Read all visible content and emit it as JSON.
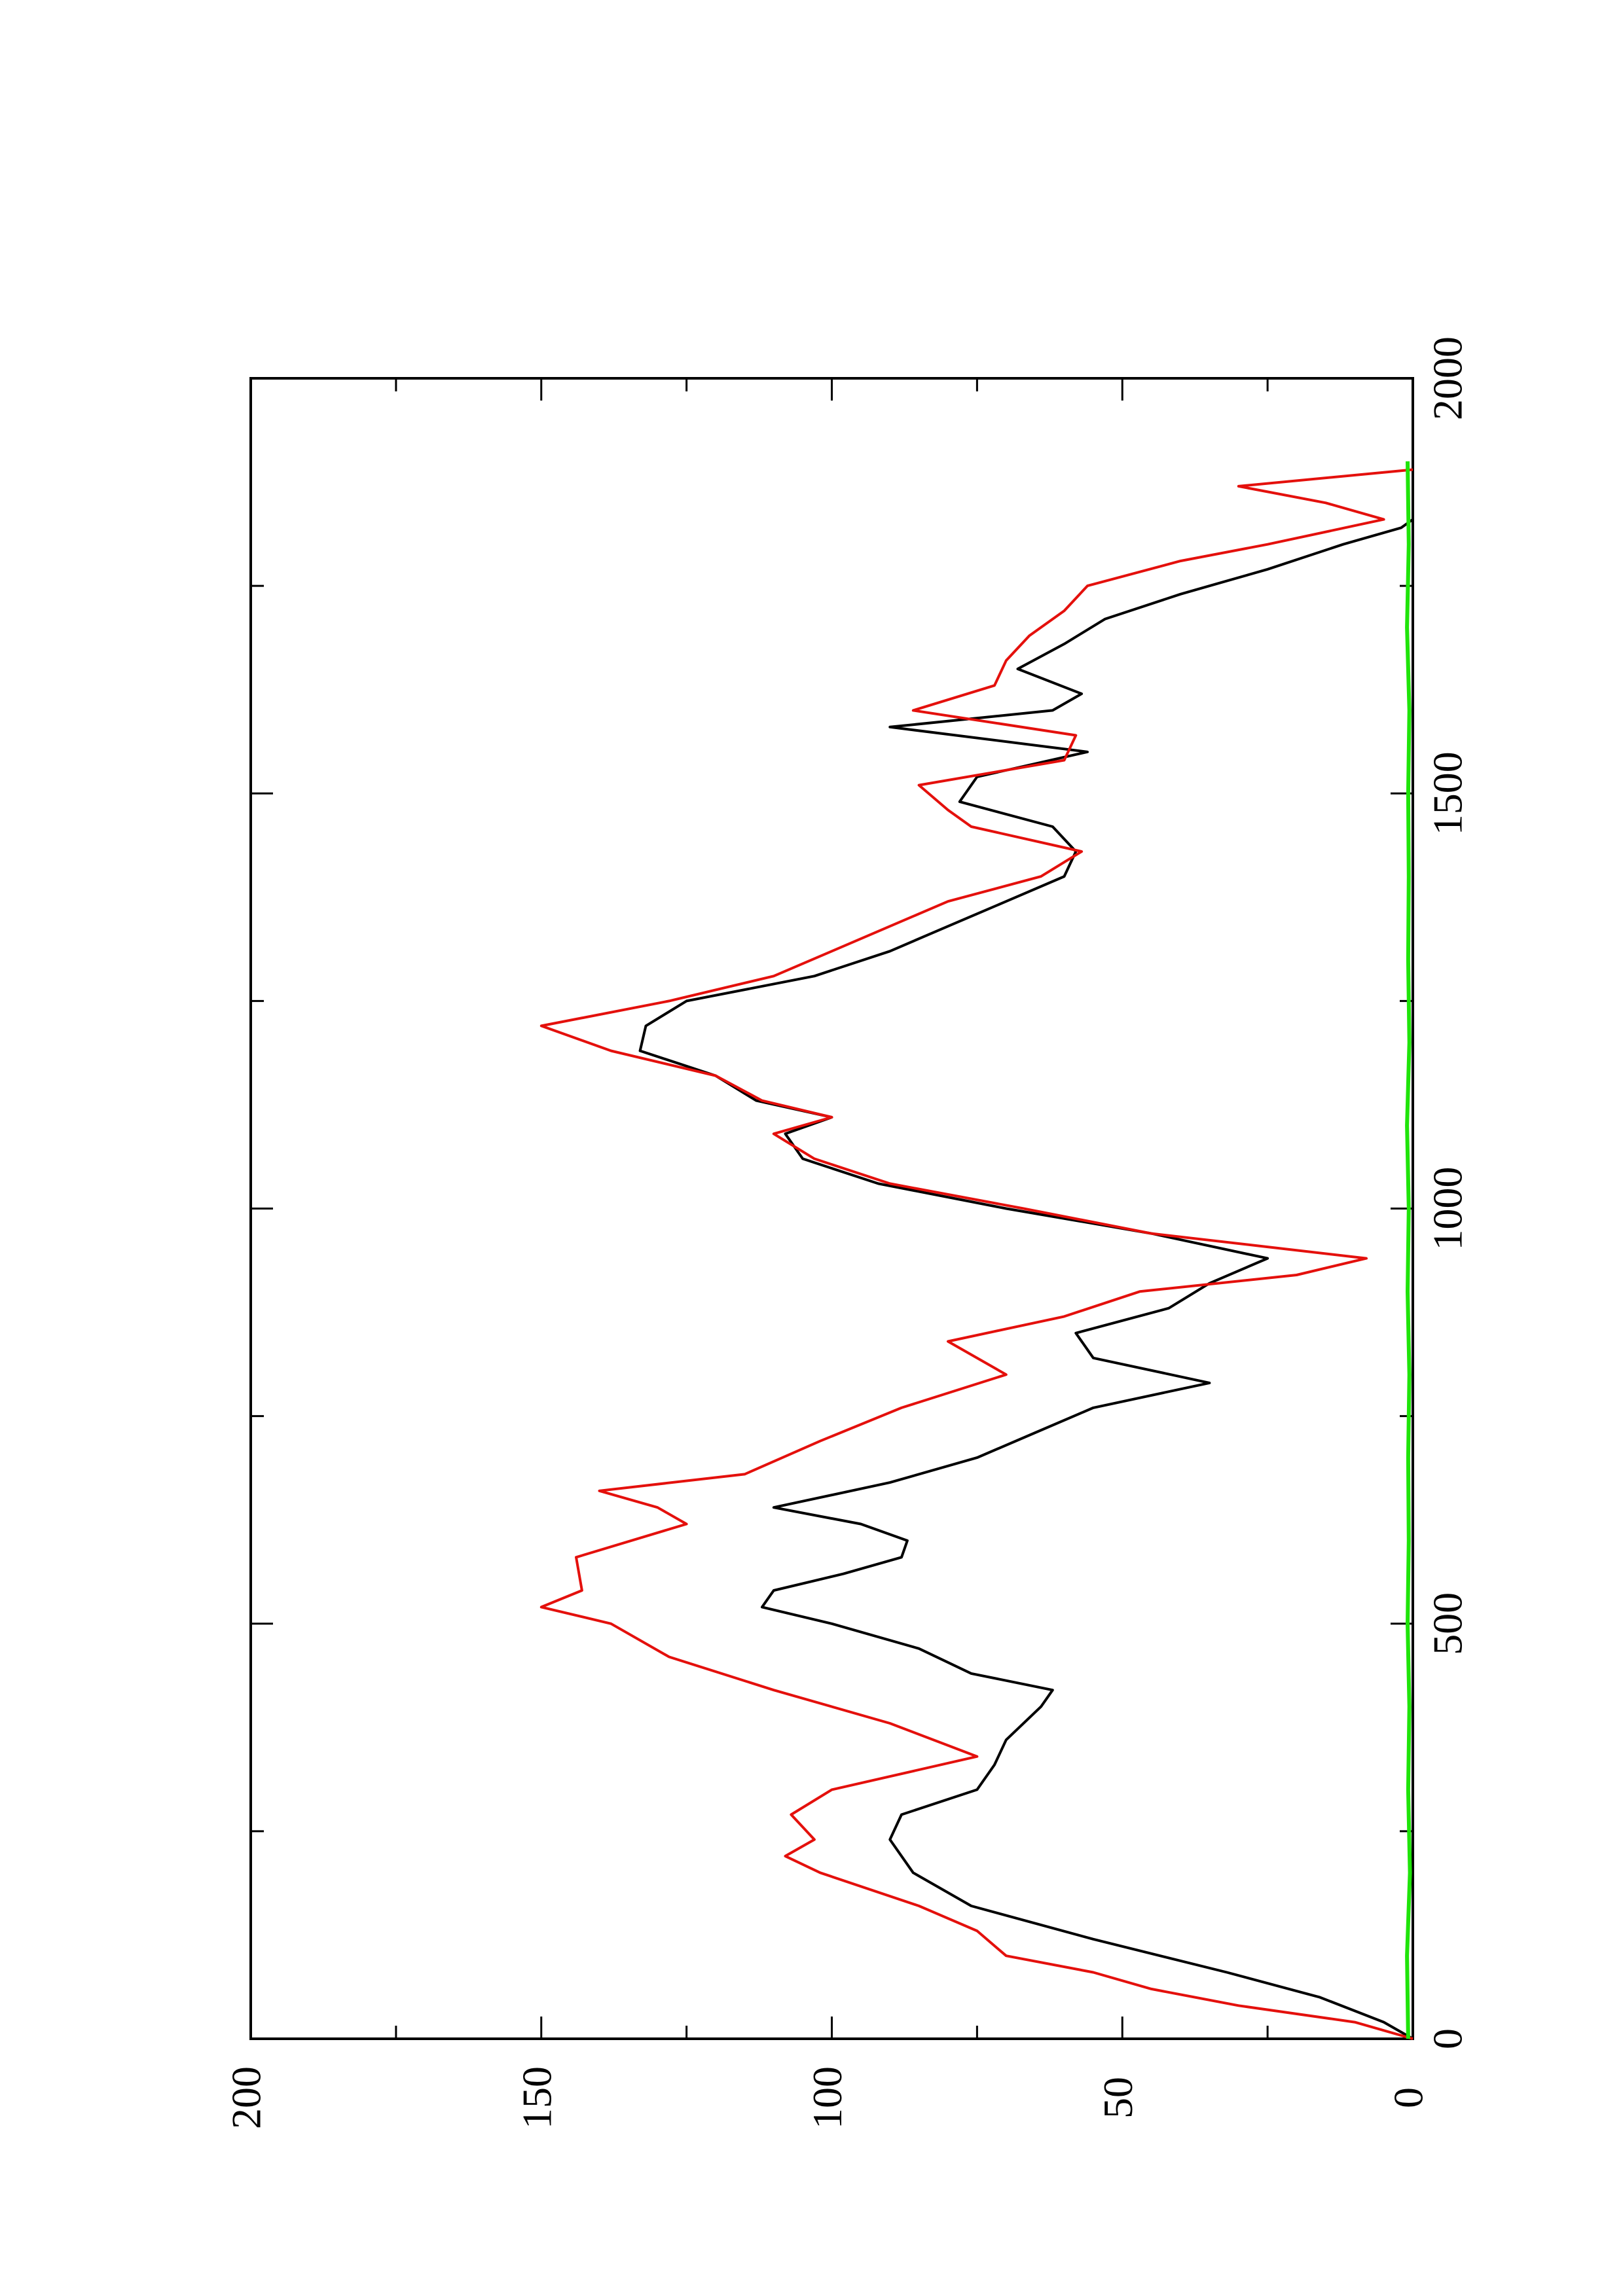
{
  "chart_data": {
    "type": "line",
    "orientation": "rotated-90-counterclockwise",
    "title": "",
    "xlabel": "",
    "ylabel": "",
    "xlim": [
      0,
      2000
    ],
    "ylim": [
      0,
      200
    ],
    "x_ticks": [
      0,
      500,
      1000,
      1500,
      2000
    ],
    "x_minor_ticks": [
      250,
      750,
      1250,
      1750
    ],
    "y_ticks": [
      0,
      50,
      100,
      150,
      200
    ],
    "y_minor_ticks": [
      25,
      75,
      125,
      175
    ],
    "x_tick_labels": [
      "0",
      "500",
      "1000",
      "1500",
      "2000"
    ],
    "y_tick_labels": [
      "0",
      "50",
      "100",
      "150",
      "200"
    ],
    "grid": false,
    "legend": "none",
    "series": [
      {
        "color": "#000000",
        "x": [
          0,
          20,
          50,
          80,
          120,
          160,
          200,
          240,
          270,
          300,
          330,
          360,
          400,
          420,
          440,
          470,
          500,
          520,
          540,
          560,
          580,
          600,
          620,
          640,
          670,
          700,
          730,
          760,
          790,
          820,
          850,
          880,
          910,
          940,
          970,
          1000,
          1030,
          1060,
          1090,
          1110,
          1130,
          1160,
          1190,
          1220,
          1250,
          1280,
          1310,
          1340,
          1370,
          1400,
          1430,
          1460,
          1490,
          1520,
          1550,
          1580,
          1600,
          1620,
          1650,
          1680,
          1710,
          1740,
          1770,
          1800,
          1820,
          1830
        ],
        "values": [
          0,
          5,
          16,
          32,
          55,
          76,
          86,
          90,
          88,
          75,
          72,
          70,
          64,
          62,
          76,
          85,
          100,
          112,
          110,
          98,
          88,
          87,
          95,
          110,
          90,
          75,
          65,
          55,
          35,
          55,
          58,
          42,
          35,
          25,
          45,
          70,
          92,
          105,
          108,
          100,
          113,
          120,
          133,
          132,
          125,
          103,
          90,
          80,
          70,
          60,
          58,
          62,
          78,
          75,
          56,
          90,
          62,
          57,
          68,
          60,
          53,
          40,
          25,
          12,
          2,
          0
        ]
      },
      {
        "color": "#e4100c",
        "x": [
          0,
          20,
          40,
          60,
          80,
          100,
          130,
          160,
          200,
          220,
          240,
          270,
          300,
          340,
          380,
          420,
          460,
          500,
          520,
          540,
          580,
          620,
          640,
          660,
          680,
          720,
          760,
          800,
          840,
          870,
          900,
          920,
          940,
          970,
          1000,
          1030,
          1060,
          1090,
          1110,
          1130,
          1160,
          1190,
          1220,
          1250,
          1280,
          1310,
          1340,
          1370,
          1400,
          1430,
          1460,
          1480,
          1510,
          1540,
          1570,
          1600,
          1630,
          1660,
          1690,
          1720,
          1750,
          1780,
          1800,
          1830,
          1850,
          1870,
          1890
        ],
        "values": [
          0,
          10,
          30,
          45,
          55,
          70,
          75,
          85,
          102,
          108,
          103,
          107,
          100,
          75,
          90,
          110,
          128,
          138,
          150,
          143,
          144,
          125,
          130,
          140,
          115,
          102,
          88,
          70,
          80,
          60,
          47,
          20,
          8,
          45,
          67,
          90,
          103,
          110,
          100,
          112,
          120,
          138,
          150,
          128,
          110,
          100,
          90,
          80,
          64,
          57,
          76,
          80,
          85,
          60,
          58,
          86,
          72,
          70,
          66,
          60,
          56,
          40,
          25,
          5,
          15,
          30,
          0
        ]
      },
      {
        "color": "#1fe40a",
        "x": [
          0,
          100,
          200,
          300,
          400,
          500,
          600,
          700,
          800,
          900,
          1000,
          1100,
          1200,
          1300,
          1400,
          1500,
          1600,
          1700,
          1800,
          1900
        ],
        "values": [
          0.8,
          1.0,
          0.5,
          0.8,
          0.6,
          0.9,
          0.7,
          0.8,
          0.6,
          0.9,
          0.7,
          1.0,
          0.6,
          0.8,
          0.7,
          0.8,
          0.6,
          1.0,
          0.7,
          0.9
        ]
      }
    ]
  }
}
